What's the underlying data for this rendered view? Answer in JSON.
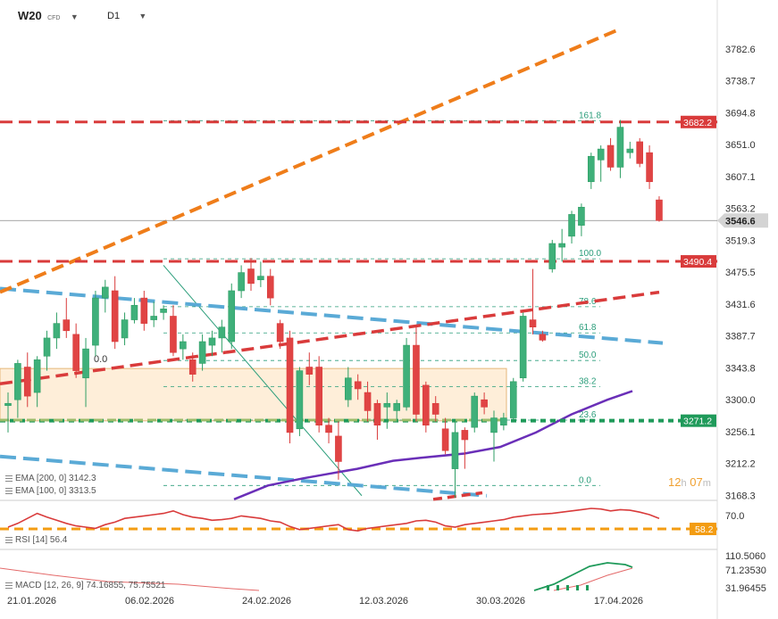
{
  "header": {
    "symbol": "W20",
    "symbol_type": "CFD",
    "timeframe": "D1"
  },
  "countdown": {
    "hours": "12",
    "h_unit": "h",
    "minutes": "07",
    "m_unit": "m"
  },
  "main_panel": {
    "price_axis_ticks": [
      "3782.6",
      "3738.7",
      "3694.8",
      "3651.0",
      "3607.1",
      "3563.2",
      "3519.3",
      "3475.5",
      "3431.6",
      "3387.7",
      "3343.8",
      "3300.0",
      "3256.1",
      "3212.2",
      "3168.3"
    ],
    "price_badges": [
      {
        "label": "3682.2",
        "value": 3682.2,
        "color": "#d93b3b"
      },
      {
        "label": "3546.6",
        "value": 3546.6,
        "color": "#888888"
      },
      {
        "label": "3490.4",
        "value": 3490.4,
        "color": "#d93b3b"
      },
      {
        "label": "3271.2",
        "value": 3271.2,
        "color": "#1f9a5a"
      }
    ],
    "fib_labels": [
      {
        "label": "161.8",
        "value": 3684.0
      },
      {
        "label": "100.0",
        "value": 3494.0
      },
      {
        "label": "78.6",
        "value": 3428.0
      },
      {
        "label": "61.8",
        "value": 3392.0
      },
      {
        "label": "50.0",
        "value": 3354.0
      },
      {
        "label": "38.2",
        "value": 3318.0
      },
      {
        "label": "23.6",
        "value": 3272.0
      },
      {
        "label": "0.0",
        "value": 3182.0
      }
    ],
    "box_label": "0.0",
    "ema_legend": [
      {
        "text": "EMA [200, 0] 3142.3"
      },
      {
        "text": "EMA [100, 0] 3313.5"
      }
    ]
  },
  "rsi_panel": {
    "legend": "RSI [14] 56.4",
    "axis_tick": "70.0",
    "badge": "58.2",
    "badge_color": "#f39c12"
  },
  "macd_panel": {
    "legend": "MACD [12, 26, 9] 74.16855, 75.75521",
    "axis_ticks": [
      "110.5060",
      "71.23530",
      "31.96455"
    ]
  },
  "date_axis": [
    "21.01.2026",
    "06.02.2026",
    "24.02.2026",
    "12.03.2026",
    "30.03.2026",
    "17.04.2026"
  ],
  "chart_data": {
    "type": "candlestick",
    "symbol": "W20",
    "timeframe": "D1",
    "ylim": [
      3160,
      3810
    ],
    "candles": [
      {
        "o": 3292,
        "h": 3310,
        "l": 3255,
        "c": 3295
      },
      {
        "o": 3300,
        "h": 3355,
        "l": 3275,
        "c": 3350
      },
      {
        "o": 3345,
        "h": 3365,
        "l": 3290,
        "c": 3305
      },
      {
        "o": 3310,
        "h": 3360,
        "l": 3290,
        "c": 3355
      },
      {
        "o": 3360,
        "h": 3395,
        "l": 3340,
        "c": 3385
      },
      {
        "o": 3385,
        "h": 3420,
        "l": 3370,
        "c": 3405
      },
      {
        "o": 3410,
        "h": 3440,
        "l": 3385,
        "c": 3395
      },
      {
        "o": 3390,
        "h": 3405,
        "l": 3330,
        "c": 3340
      },
      {
        "o": 3330,
        "h": 3385,
        "l": 3290,
        "c": 3370
      },
      {
        "o": 3375,
        "h": 3450,
        "l": 3360,
        "c": 3440
      },
      {
        "o": 3440,
        "h": 3465,
        "l": 3420,
        "c": 3455
      },
      {
        "o": 3450,
        "h": 3470,
        "l": 3370,
        "c": 3380
      },
      {
        "o": 3385,
        "h": 3420,
        "l": 3375,
        "c": 3410
      },
      {
        "o": 3410,
        "h": 3440,
        "l": 3405,
        "c": 3430
      },
      {
        "o": 3440,
        "h": 3450,
        "l": 3395,
        "c": 3405
      },
      {
        "o": 3410,
        "h": 3435,
        "l": 3400,
        "c": 3415
      },
      {
        "o": 3420,
        "h": 3430,
        "l": 3410,
        "c": 3425
      },
      {
        "o": 3415,
        "h": 3430,
        "l": 3360,
        "c": 3365
      },
      {
        "o": 3370,
        "h": 3390,
        "l": 3355,
        "c": 3380
      },
      {
        "o": 3355,
        "h": 3365,
        "l": 3325,
        "c": 3335
      },
      {
        "o": 3350,
        "h": 3390,
        "l": 3340,
        "c": 3380
      },
      {
        "o": 3375,
        "h": 3395,
        "l": 3360,
        "c": 3385
      },
      {
        "o": 3385,
        "h": 3410,
        "l": 3365,
        "c": 3400
      },
      {
        "o": 3380,
        "h": 3460,
        "l": 3370,
        "c": 3450
      },
      {
        "o": 3450,
        "h": 3485,
        "l": 3440,
        "c": 3475
      },
      {
        "o": 3480,
        "h": 3495,
        "l": 3450,
        "c": 3460
      },
      {
        "o": 3465,
        "h": 3490,
        "l": 3455,
        "c": 3470
      },
      {
        "o": 3470,
        "h": 3480,
        "l": 3430,
        "c": 3440
      },
      {
        "o": 3405,
        "h": 3410,
        "l": 3370,
        "c": 3380
      },
      {
        "o": 3385,
        "h": 3395,
        "l": 3240,
        "c": 3255
      },
      {
        "o": 3260,
        "h": 3345,
        "l": 3250,
        "c": 3340
      },
      {
        "o": 3345,
        "h": 3365,
        "l": 3320,
        "c": 3335
      },
      {
        "o": 3345,
        "h": 3360,
        "l": 3255,
        "c": 3265
      },
      {
        "o": 3265,
        "h": 3275,
        "l": 3240,
        "c": 3255
      },
      {
        "o": 3250,
        "h": 3270,
        "l": 3190,
        "c": 3215
      },
      {
        "o": 3300,
        "h": 3345,
        "l": 3290,
        "c": 3330
      },
      {
        "o": 3325,
        "h": 3335,
        "l": 3300,
        "c": 3315
      },
      {
        "o": 3310,
        "h": 3325,
        "l": 3270,
        "c": 3285
      },
      {
        "o": 3295,
        "h": 3300,
        "l": 3245,
        "c": 3265
      },
      {
        "o": 3290,
        "h": 3310,
        "l": 3260,
        "c": 3295
      },
      {
        "o": 3285,
        "h": 3300,
        "l": 3270,
        "c": 3295
      },
      {
        "o": 3290,
        "h": 3385,
        "l": 3285,
        "c": 3375
      },
      {
        "o": 3375,
        "h": 3400,
        "l": 3270,
        "c": 3280
      },
      {
        "o": 3320,
        "h": 3325,
        "l": 3255,
        "c": 3265
      },
      {
        "o": 3295,
        "h": 3305,
        "l": 3270,
        "c": 3280
      },
      {
        "o": 3260,
        "h": 3275,
        "l": 3225,
        "c": 3230
      },
      {
        "o": 3205,
        "h": 3270,
        "l": 3165,
        "c": 3255
      },
      {
        "o": 3258,
        "h": 3262,
        "l": 3205,
        "c": 3245
      },
      {
        "o": 3262,
        "h": 3310,
        "l": 3255,
        "c": 3305
      },
      {
        "o": 3300,
        "h": 3310,
        "l": 3280,
        "c": 3290
      },
      {
        "o": 3255,
        "h": 3285,
        "l": 3215,
        "c": 3275
      },
      {
        "o": 3265,
        "h": 3282,
        "l": 3258,
        "c": 3275
      },
      {
        "o": 3275,
        "h": 3330,
        "l": 3270,
        "c": 3325
      },
      {
        "o": 3330,
        "h": 3420,
        "l": 3325,
        "c": 3415
      },
      {
        "o": 3410,
        "h": 3480,
        "l": 3390,
        "c": 3400
      },
      {
        "o": 3390,
        "h": 3395,
        "l": 3380,
        "c": 3382
      },
      {
        "o": 3480,
        "h": 3520,
        "l": 3475,
        "c": 3515
      },
      {
        "o": 3510,
        "h": 3535,
        "l": 3490,
        "c": 3515
      },
      {
        "o": 3525,
        "h": 3560,
        "l": 3515,
        "c": 3555
      },
      {
        "o": 3540,
        "h": 3570,
        "l": 3525,
        "c": 3565
      },
      {
        "o": 3600,
        "h": 3640,
        "l": 3590,
        "c": 3635
      },
      {
        "o": 3630,
        "h": 3650,
        "l": 3600,
        "c": 3645
      },
      {
        "o": 3650,
        "h": 3660,
        "l": 3615,
        "c": 3620
      },
      {
        "o": 3620,
        "h": 3685,
        "l": 3605,
        "c": 3675
      },
      {
        "o": 3640,
        "h": 3655,
        "l": 3632,
        "c": 3645
      },
      {
        "o": 3655,
        "h": 3660,
        "l": 3620,
        "c": 3625
      },
      {
        "o": 3640,
        "h": 3650,
        "l": 3590,
        "c": 3600
      },
      {
        "o": 3575,
        "h": 3580,
        "l": 3545,
        "c": 3546.6
      }
    ]
  }
}
